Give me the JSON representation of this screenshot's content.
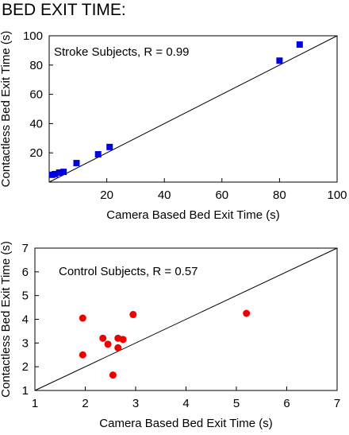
{
  "page_title": "BED EXIT TIME:",
  "chart_data": [
    {
      "type": "scatter",
      "annotation": "Stroke Subjects, R = 0.99",
      "xlabel": "Camera Based Bed Exit Time (s)",
      "ylabel": "Contactless Bed Exit Time (s)",
      "xlim": [
        0,
        100
      ],
      "ylim": [
        0,
        100
      ],
      "xticks": [
        20,
        40,
        60,
        80,
        100
      ],
      "yticks": [
        20,
        40,
        60,
        80,
        100
      ],
      "marker": "square",
      "color": "#0000dd",
      "reference_line": "y = x",
      "grid": false,
      "points": [
        {
          "x": 1,
          "y": 5
        },
        {
          "x": 2,
          "y": 5.5
        },
        {
          "x": 3.5,
          "y": 6.5
        },
        {
          "x": 5,
          "y": 7
        },
        {
          "x": 9.5,
          "y": 13
        },
        {
          "x": 17,
          "y": 19
        },
        {
          "x": 21,
          "y": 24
        },
        {
          "x": 80,
          "y": 83
        },
        {
          "x": 87,
          "y": 94
        }
      ]
    },
    {
      "type": "scatter",
      "annotation": "Control Subjects, R = 0.57",
      "xlabel": "Camera Based Bed Exit Time (s)",
      "ylabel": "Contactless Bed Exit Time (s)",
      "xlim": [
        1,
        7
      ],
      "ylim": [
        1,
        7
      ],
      "xticks": [
        1,
        2,
        3,
        4,
        5,
        6,
        7
      ],
      "yticks": [
        1,
        2,
        3,
        4,
        5,
        6,
        7
      ],
      "marker": "circle",
      "color": "#ee0000",
      "reference_line": "y = x",
      "grid": false,
      "points": [
        {
          "x": 1.95,
          "y": 4.05
        },
        {
          "x": 1.95,
          "y": 2.5
        },
        {
          "x": 2.35,
          "y": 3.2
        },
        {
          "x": 2.45,
          "y": 2.95
        },
        {
          "x": 2.55,
          "y": 1.65
        },
        {
          "x": 2.65,
          "y": 3.2
        },
        {
          "x": 2.65,
          "y": 2.8
        },
        {
          "x": 2.75,
          "y": 3.15
        },
        {
          "x": 2.95,
          "y": 4.2
        },
        {
          "x": 5.2,
          "y": 4.25
        }
      ]
    }
  ]
}
